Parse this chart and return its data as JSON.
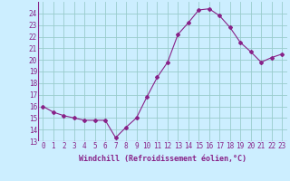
{
  "x": [
    0,
    1,
    2,
    3,
    4,
    5,
    6,
    7,
    8,
    9,
    10,
    11,
    12,
    13,
    14,
    15,
    16,
    17,
    18,
    19,
    20,
    21,
    22,
    23
  ],
  "y": [
    16.0,
    15.5,
    15.2,
    15.0,
    14.8,
    14.8,
    14.8,
    13.3,
    14.2,
    15.0,
    16.8,
    18.5,
    19.8,
    22.2,
    23.2,
    24.3,
    24.4,
    23.8,
    22.8,
    21.5,
    20.7,
    19.8,
    20.2,
    20.5
  ],
  "line_color": "#882288",
  "marker": "D",
  "marker_size": 2.0,
  "bg_color": "#cceeff",
  "grid_color": "#99cccc",
  "xlabel": "Windchill (Refroidissement éolien,°C)",
  "xlabel_color": "#882288",
  "tick_color": "#882288",
  "ylim": [
    13,
    25
  ],
  "yticks": [
    13,
    14,
    15,
    16,
    17,
    18,
    19,
    20,
    21,
    22,
    23,
    24
  ],
  "xlim": [
    -0.5,
    23.5
  ],
  "xticks": [
    0,
    1,
    2,
    3,
    4,
    5,
    6,
    7,
    8,
    9,
    10,
    11,
    12,
    13,
    14,
    15,
    16,
    17,
    18,
    19,
    20,
    21,
    22,
    23
  ],
  "tick_fontsize": 5.5,
  "xlabel_fontsize": 6.0
}
